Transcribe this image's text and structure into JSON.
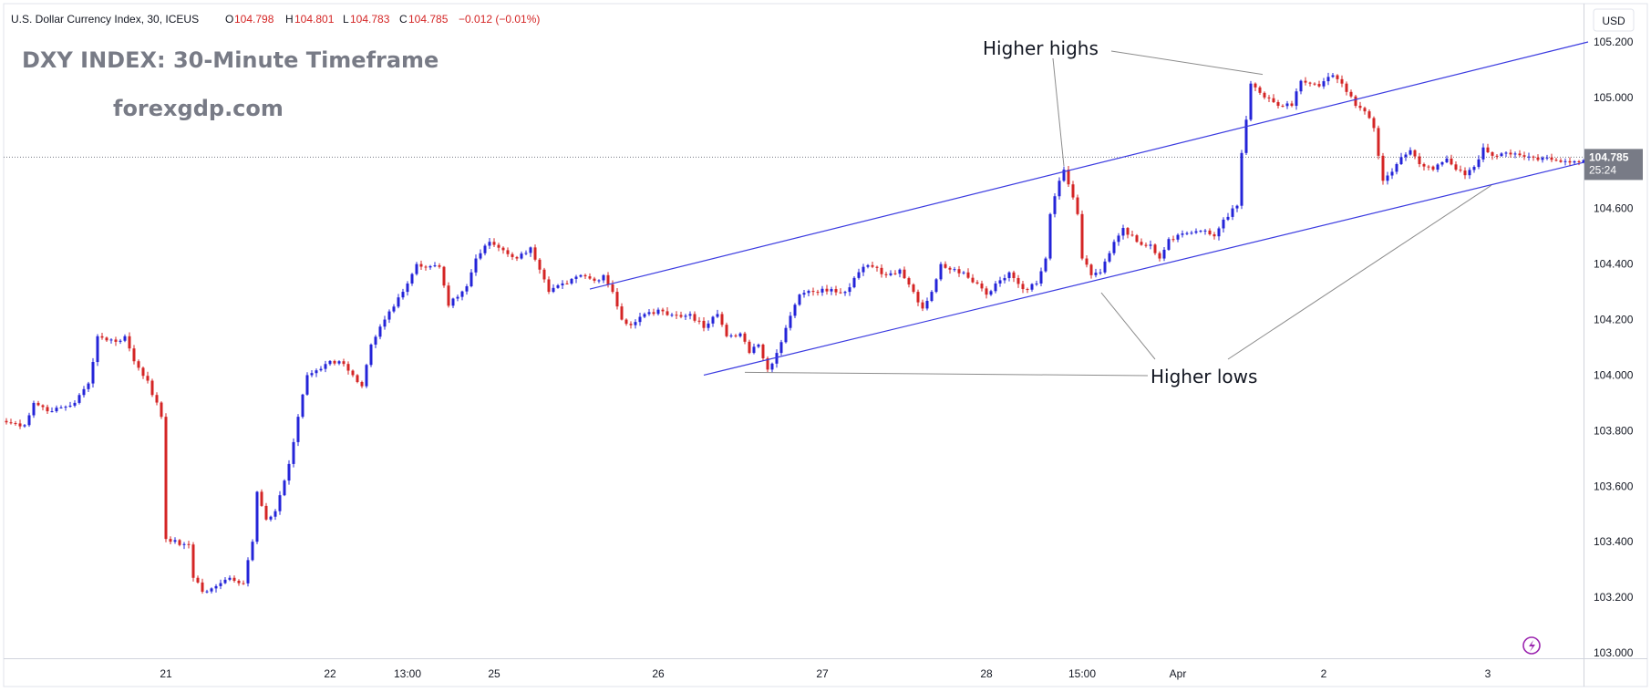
{
  "header": {
    "symbol_name": "U.S. Dollar Currency Index, 30, ICEUS",
    "open_label": "O",
    "open": "104.798",
    "high_label": "H",
    "high": "104.801",
    "low_label": "L",
    "low": "104.783",
    "close_label": "C",
    "close": "104.785",
    "change": "−0.012 (−0.01%)"
  },
  "watermark": {
    "title": "DXY INDEX: 30-Minute Timeframe",
    "site": "forexgdp.com"
  },
  "currency_label": "USD",
  "price_tag": {
    "price": "104.785",
    "countdown": "25:24"
  },
  "annotations": {
    "highs": "Higher highs",
    "lows": "Higher lows"
  },
  "colors": {
    "up": "#2424d8",
    "down": "#d42525",
    "trendline": "#3b3be0",
    "annotation_line": "#8c8c8c",
    "axis_text": "#131722",
    "grid_border": "#d1d4dc",
    "price_tag_bg": "#787b86",
    "watermark": "#787b86"
  },
  "chart_data": {
    "type": "candlestick",
    "title": "DXY INDEX: 30-Minute Timeframe",
    "symbol": "U.S. Dollar Currency Index, 30, ICEUS",
    "ylim": [
      103.0,
      105.2
    ],
    "yticks": [
      "105.200",
      "105.000",
      "104.800",
      "104.600",
      "104.400",
      "104.200",
      "104.000",
      "103.800",
      "103.600",
      "103.400",
      "103.200",
      "103.000"
    ],
    "ytick_values": [
      105.2,
      105.0,
      104.8,
      104.6,
      104.4,
      104.2,
      104.0,
      103.8,
      103.6,
      103.4,
      103.2,
      103.0
    ],
    "xticks": [
      {
        "label": "21",
        "bar": 35
      },
      {
        "label": "22",
        "bar": 71
      },
      {
        "label": "13:00",
        "bar": 88
      },
      {
        "label": "25",
        "bar": 107
      },
      {
        "label": "26",
        "bar": 143
      },
      {
        "label": "27",
        "bar": 179
      },
      {
        "label": "28",
        "bar": 215
      },
      {
        "label": "15:00",
        "bar": 236
      },
      {
        "label": "Apr",
        "bar": 257
      },
      {
        "label": "2",
        "bar": 289
      },
      {
        "label": "3",
        "bar": 325
      }
    ],
    "bar_count": 347,
    "anchors": [
      [
        0,
        103.83
      ],
      [
        4,
        103.82
      ],
      [
        6,
        103.9
      ],
      [
        10,
        103.87
      ],
      [
        15,
        103.9
      ],
      [
        18,
        103.97
      ],
      [
        20,
        104.14
      ],
      [
        24,
        104.12
      ],
      [
        26,
        104.14
      ],
      [
        28,
        104.05
      ],
      [
        31,
        103.98
      ],
      [
        34,
        103.85
      ],
      [
        35,
        103.41
      ],
      [
        36,
        103.4
      ],
      [
        40,
        103.39
      ],
      [
        41,
        103.27
      ],
      [
        43,
        103.22
      ],
      [
        46,
        103.24
      ],
      [
        49,
        103.27
      ],
      [
        52,
        103.25
      ],
      [
        54,
        103.4
      ],
      [
        55,
        103.58
      ],
      [
        57,
        103.48
      ],
      [
        59,
        103.51
      ],
      [
        62,
        103.68
      ],
      [
        64,
        103.85
      ],
      [
        66,
        104.0
      ],
      [
        70,
        104.04
      ],
      [
        73,
        104.05
      ],
      [
        76,
        104.0
      ],
      [
        78,
        103.96
      ],
      [
        80,
        104.11
      ],
      [
        83,
        104.2
      ],
      [
        86,
        104.28
      ],
      [
        88,
        104.33
      ],
      [
        90,
        104.4
      ],
      [
        95,
        104.39
      ],
      [
        97,
        104.25
      ],
      [
        101,
        104.32
      ],
      [
        103,
        104.42
      ],
      [
        106,
        104.48
      ],
      [
        109,
        104.45
      ],
      [
        112,
        104.42
      ],
      [
        115,
        104.46
      ],
      [
        117,
        104.38
      ],
      [
        119,
        104.3
      ],
      [
        123,
        104.33
      ],
      [
        126,
        104.36
      ],
      [
        129,
        104.34
      ],
      [
        131,
        104.36
      ],
      [
        133,
        104.3
      ],
      [
        135,
        104.2
      ],
      [
        137,
        104.18
      ],
      [
        140,
        104.22
      ],
      [
        144,
        104.23
      ],
      [
        148,
        104.21
      ],
      [
        150,
        104.22
      ],
      [
        153,
        104.17
      ],
      [
        156,
        104.22
      ],
      [
        158,
        104.14
      ],
      [
        161,
        104.15
      ],
      [
        163,
        104.08
      ],
      [
        165,
        104.11
      ],
      [
        167,
        104.02
      ],
      [
        169,
        104.08
      ],
      [
        171,
        104.17
      ],
      [
        174,
        104.29
      ],
      [
        177,
        104.3
      ],
      [
        181,
        104.31
      ],
      [
        184,
        104.3
      ],
      [
        186,
        104.35
      ],
      [
        188,
        104.39
      ],
      [
        190,
        104.39
      ],
      [
        193,
        104.36
      ],
      [
        196,
        104.38
      ],
      [
        199,
        104.3
      ],
      [
        201,
        104.24
      ],
      [
        203,
        104.3
      ],
      [
        205,
        104.4
      ],
      [
        207,
        104.38
      ],
      [
        210,
        104.37
      ],
      [
        213,
        104.33
      ],
      [
        215,
        104.29
      ],
      [
        217,
        104.33
      ],
      [
        220,
        104.37
      ],
      [
        223,
        104.31
      ],
      [
        226,
        104.33
      ],
      [
        228,
        104.42
      ],
      [
        229,
        104.58
      ],
      [
        231,
        104.7
      ],
      [
        232,
        104.74
      ],
      [
        234,
        104.64
      ],
      [
        235,
        104.58
      ],
      [
        236,
        104.42
      ],
      [
        238,
        104.36
      ],
      [
        240,
        104.37
      ],
      [
        243,
        104.48
      ],
      [
        245,
        104.53
      ],
      [
        248,
        104.48
      ],
      [
        251,
        104.47
      ],
      [
        253,
        104.42
      ],
      [
        255,
        104.49
      ],
      [
        258,
        104.51
      ],
      [
        262,
        104.52
      ],
      [
        265,
        104.5
      ],
      [
        267,
        104.56
      ],
      [
        270,
        104.61
      ],
      [
        271,
        104.8
      ],
      [
        272,
        104.92
      ],
      [
        273,
        105.05
      ],
      [
        276,
        105.0
      ],
      [
        279,
        104.97
      ],
      [
        282,
        104.97
      ],
      [
        284,
        105.06
      ],
      [
        288,
        105.04
      ],
      [
        291,
        105.08
      ],
      [
        293,
        105.05
      ],
      [
        294,
        105.02
      ],
      [
        296,
        104.97
      ],
      [
        298,
        104.95
      ],
      [
        300,
        104.89
      ],
      [
        301,
        104.79
      ],
      [
        302,
        104.7
      ],
      [
        305,
        104.76
      ],
      [
        308,
        104.81
      ],
      [
        310,
        104.76
      ],
      [
        313,
        104.74
      ],
      [
        316,
        104.78
      ],
      [
        318,
        104.74
      ],
      [
        320,
        104.72
      ],
      [
        322,
        104.75
      ],
      [
        324,
        104.82
      ],
      [
        326,
        104.79
      ]
    ],
    "series": [
      {
        "name": "U.S. Dollar Currency Index",
        "last_price": 104.785
      }
    ],
    "trendlines": [
      {
        "from": [
          128,
          104.31
        ],
        "to": [
          347,
          105.2
        ]
      },
      {
        "from": [
          158,
          104.02
        ],
        "to": [
          347,
          104.77
        ]
      }
    ],
    "current_price_line": 104.785,
    "price_labels": [
      {
        "text": "Higher highs",
        "points": [
          [
            232,
            104.74
          ],
          [
            276,
            105.07
          ]
        ]
      },
      {
        "text": "Higher lows",
        "points": [
          [
            162,
            104.01
          ],
          [
            239,
            104.31
          ],
          [
            327,
            104.71
          ]
        ]
      }
    ]
  }
}
